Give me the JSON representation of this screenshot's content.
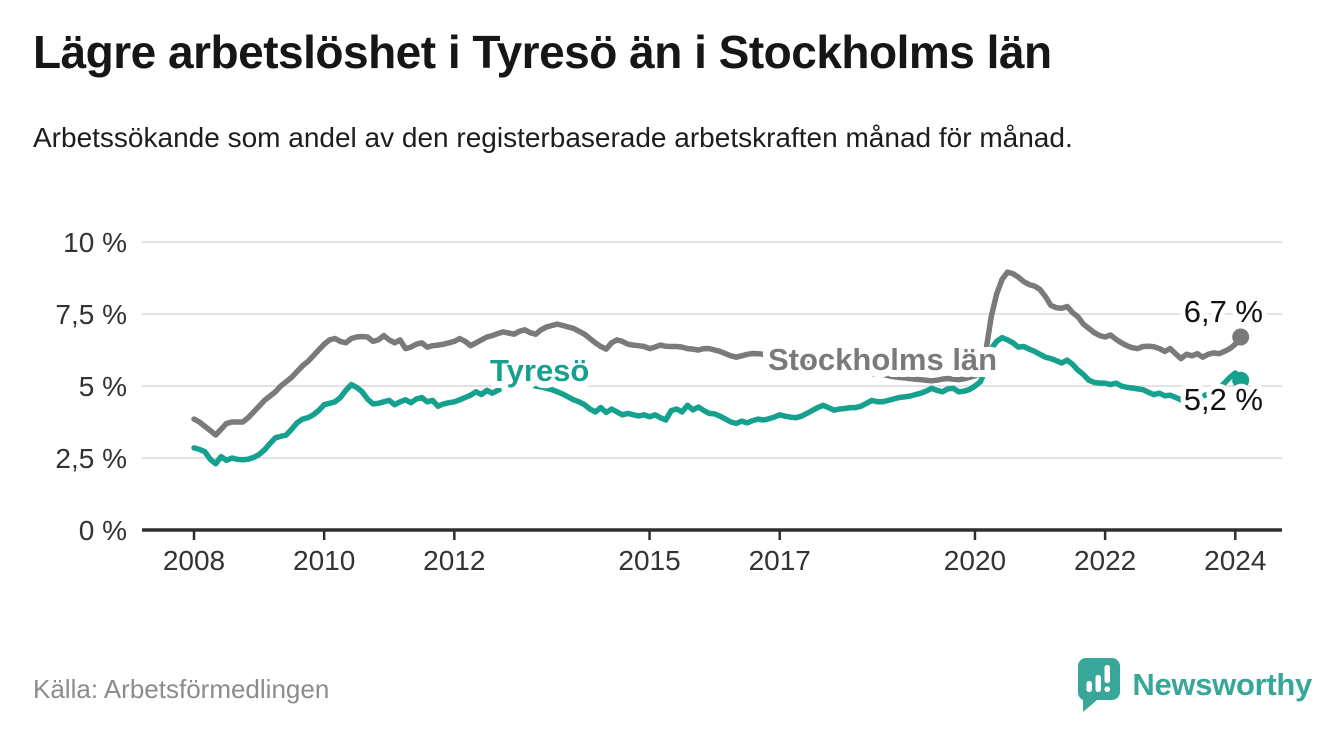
{
  "header": {
    "title": "Lägre arbetslöshet i Tyresö än i Stockholms län",
    "subtitle": "Arbetssökande som andel av den registerbaserade arbetskraften månad för månad."
  },
  "footer": {
    "source": "Källa: Arbetsförmedlingen",
    "brand": "Newsworthy"
  },
  "colors": {
    "stockholm_line": "#7a7a7a",
    "tyreso_line": "#16a18f",
    "axis": "#2f2f2f",
    "grid": "#e3e3e3",
    "tick_text": "#333333",
    "end_label_text": "#111111",
    "brand_teal": "#38a79a"
  },
  "chart_data": {
    "type": "line",
    "title": "Lägre arbetslöshet i Tyresö än i Stockholms län",
    "xlabel": "",
    "ylabel": "",
    "x_start_year": 2008,
    "x_step_months": 1,
    "ylim": [
      0,
      10
    ],
    "grid": true,
    "legend_position": "inline-labels",
    "y_ticks": [
      {
        "value": 10,
        "label": "10 %"
      },
      {
        "value": 7.5,
        "label": "7,5 %"
      },
      {
        "value": 5,
        "label": "5 %"
      },
      {
        "value": 2.5,
        "label": "2,5 %"
      },
      {
        "value": 0,
        "label": "0 %"
      }
    ],
    "x_ticks": [
      {
        "value": 2008,
        "label": "2008"
      },
      {
        "value": 2010,
        "label": "2010"
      },
      {
        "value": 2012,
        "label": "2012"
      },
      {
        "value": 2015,
        "label": "2015"
      },
      {
        "value": 2017,
        "label": "2017"
      },
      {
        "value": 2020,
        "label": "2020"
      },
      {
        "value": 2022,
        "label": "2022"
      },
      {
        "value": 2024,
        "label": "2024"
      }
    ],
    "series": [
      {
        "name": "Stockholms län",
        "color": "#7a7a7a",
        "end_label": "6,7 %",
        "end_value": 6.7,
        "values": [
          3.85,
          3.75,
          3.6,
          3.45,
          3.3,
          3.5,
          3.7,
          3.75,
          3.75,
          3.75,
          3.9,
          4.1,
          4.3,
          4.5,
          4.65,
          4.8,
          5.0,
          5.15,
          5.3,
          5.5,
          5.7,
          5.85,
          6.05,
          6.25,
          6.45,
          6.6,
          6.65,
          6.55,
          6.5,
          6.65,
          6.7,
          6.72,
          6.7,
          6.55,
          6.6,
          6.75,
          6.6,
          6.5,
          6.6,
          6.3,
          6.35,
          6.45,
          6.5,
          6.35,
          6.4,
          6.42,
          6.45,
          6.5,
          6.55,
          6.65,
          6.55,
          6.4,
          6.5,
          6.6,
          6.7,
          6.75,
          6.82,
          6.88,
          6.84,
          6.8,
          6.9,
          6.95,
          6.85,
          6.8,
          6.95,
          7.05,
          7.1,
          7.15,
          7.1,
          7.05,
          7.0,
          6.9,
          6.8,
          6.65,
          6.5,
          6.37,
          6.28,
          6.5,
          6.6,
          6.55,
          6.45,
          6.42,
          6.4,
          6.37,
          6.3,
          6.35,
          6.42,
          6.38,
          6.37,
          6.37,
          6.35,
          6.3,
          6.28,
          6.25,
          6.3,
          6.3,
          6.25,
          6.2,
          6.12,
          6.05,
          6.0,
          6.05,
          6.1,
          6.13,
          6.12,
          6.1,
          6.05,
          6.08,
          6.05,
          6.0,
          5.95,
          5.9,
          5.85,
          5.82,
          5.8,
          5.76,
          5.72,
          5.68,
          5.64,
          5.6,
          5.56,
          5.52,
          5.5,
          5.46,
          5.43,
          5.42,
          5.44,
          5.4,
          5.36,
          5.32,
          5.3,
          5.28,
          5.26,
          5.24,
          5.22,
          5.2,
          5.18,
          5.2,
          5.24,
          5.26,
          5.24,
          5.22,
          5.25,
          5.3,
          5.35,
          5.45,
          6.2,
          7.4,
          8.2,
          8.7,
          8.95,
          8.9,
          8.78,
          8.62,
          8.52,
          8.47,
          8.35,
          8.1,
          7.8,
          7.72,
          7.7,
          7.76,
          7.55,
          7.4,
          7.15,
          7.0,
          6.85,
          6.75,
          6.7,
          6.77,
          6.62,
          6.5,
          6.4,
          6.33,
          6.3,
          6.37,
          6.38,
          6.36,
          6.3,
          6.2,
          6.3,
          6.12,
          5.95,
          6.1,
          6.05,
          6.12,
          6.0,
          6.1,
          6.15,
          6.12,
          6.2,
          6.3,
          6.45,
          6.7
        ]
      },
      {
        "name": "Tyresö",
        "color": "#16a18f",
        "end_label": "5,2 %",
        "end_value": 5.2,
        "values": [
          2.85,
          2.8,
          2.72,
          2.45,
          2.3,
          2.55,
          2.42,
          2.5,
          2.45,
          2.44,
          2.46,
          2.52,
          2.62,
          2.78,
          3.0,
          3.2,
          3.25,
          3.3,
          3.5,
          3.72,
          3.85,
          3.9,
          4.0,
          4.15,
          4.35,
          4.4,
          4.45,
          4.6,
          4.85,
          5.05,
          4.95,
          4.8,
          4.55,
          4.38,
          4.4,
          4.45,
          4.5,
          4.35,
          4.45,
          4.52,
          4.42,
          4.55,
          4.6,
          4.45,
          4.5,
          4.3,
          4.38,
          4.42,
          4.45,
          4.52,
          4.6,
          4.68,
          4.8,
          4.7,
          4.85,
          4.75,
          4.85,
          4.95,
          5.0,
          5.0,
          5.05,
          5.1,
          5.05,
          5.0,
          4.97,
          4.92,
          4.87,
          4.8,
          4.72,
          4.62,
          4.52,
          4.45,
          4.35,
          4.2,
          4.1,
          4.25,
          4.08,
          4.2,
          4.1,
          4.0,
          4.05,
          4.0,
          3.96,
          4.0,
          3.93,
          4.0,
          3.9,
          3.82,
          4.15,
          4.2,
          4.1,
          4.33,
          4.17,
          4.27,
          4.15,
          4.05,
          4.03,
          3.95,
          3.85,
          3.75,
          3.7,
          3.78,
          3.72,
          3.8,
          3.85,
          3.82,
          3.86,
          3.92,
          4.0,
          3.95,
          3.92,
          3.9,
          3.95,
          4.05,
          4.15,
          4.25,
          4.33,
          4.25,
          4.16,
          4.2,
          4.22,
          4.25,
          4.25,
          4.3,
          4.4,
          4.5,
          4.45,
          4.45,
          4.5,
          4.55,
          4.6,
          4.62,
          4.65,
          4.7,
          4.75,
          4.82,
          4.92,
          4.85,
          4.8,
          4.9,
          4.92,
          4.8,
          4.82,
          4.88,
          5.0,
          5.15,
          5.6,
          6.3,
          6.55,
          6.68,
          6.6,
          6.5,
          6.35,
          6.37,
          6.28,
          6.2,
          6.1,
          6.0,
          5.95,
          5.88,
          5.8,
          5.9,
          5.75,
          5.55,
          5.4,
          5.2,
          5.12,
          5.1,
          5.1,
          5.05,
          5.1,
          5.0,
          4.95,
          4.93,
          4.9,
          4.87,
          4.78,
          4.7,
          4.75,
          4.66,
          4.68,
          4.6,
          4.52,
          4.56,
          4.62,
          4.7,
          4.65,
          4.72,
          4.8,
          4.9,
          5.1,
          5.3,
          5.45,
          5.2
        ]
      }
    ]
  }
}
